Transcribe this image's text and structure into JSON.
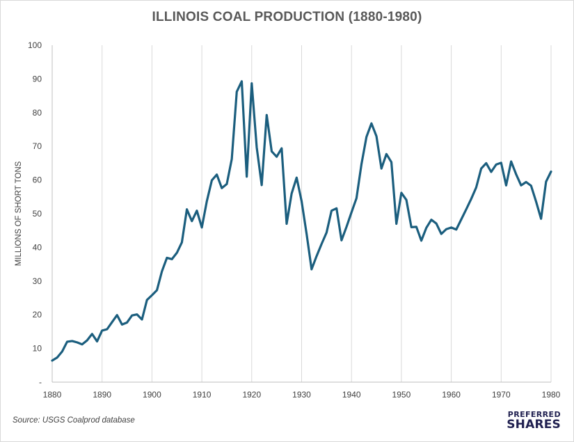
{
  "title": "ILLINOIS COAL PRODUCTION (1880-1980)",
  "source": "Source: USGS Coalprod database",
  "logo": {
    "line1": "PREFERRED",
    "line2": "SHARES"
  },
  "colors": {
    "line": "#1b5e7e",
    "grid": "#d9d9d9",
    "axis": "#bfbfbf",
    "text": "#404040"
  },
  "chart_data": {
    "type": "line",
    "title": "ILLINOIS COAL PRODUCTION (1880-1980)",
    "xlabel": "",
    "ylabel": "MILLIONS OF SHORT TONS",
    "xlim": [
      1880,
      1980
    ],
    "ylim": [
      0,
      100
    ],
    "grid": "vertical",
    "legend": "none",
    "x_ticks": [
      1880,
      1890,
      1900,
      1910,
      1920,
      1930,
      1940,
      1950,
      1960,
      1970,
      1980
    ],
    "y_ticks": [
      {
        "value": 0,
        "label": "-"
      },
      {
        "value": 10,
        "label": "10"
      },
      {
        "value": 20,
        "label": "20"
      },
      {
        "value": 30,
        "label": "30"
      },
      {
        "value": 40,
        "label": "40"
      },
      {
        "value": 50,
        "label": "50"
      },
      {
        "value": 60,
        "label": "60"
      },
      {
        "value": 70,
        "label": "70"
      },
      {
        "value": 80,
        "label": "80"
      },
      {
        "value": 90,
        "label": "90"
      },
      {
        "value": 100,
        "label": "100"
      }
    ],
    "series": [
      {
        "x": [
          1880,
          1881,
          1882,
          1883,
          1884,
          1885,
          1886,
          1887,
          1888,
          1889,
          1890,
          1891,
          1892,
          1893,
          1894,
          1895,
          1896,
          1897,
          1898,
          1899,
          1900,
          1901,
          1902,
          1903,
          1904,
          1905,
          1906,
          1907,
          1908,
          1909,
          1910,
          1911,
          1912,
          1913,
          1914,
          1915,
          1916,
          1917,
          1918,
          1919,
          1920,
          1921,
          1922,
          1923,
          1924,
          1925,
          1926,
          1927,
          1928,
          1929,
          1930,
          1931,
          1932,
          1933,
          1934,
          1935,
          1936,
          1937,
          1938,
          1939,
          1940,
          1941,
          1942,
          1943,
          1944,
          1945,
          1946,
          1947,
          1948,
          1949,
          1950,
          1951,
          1952,
          1953,
          1954,
          1955,
          1956,
          1957,
          1958,
          1959,
          1960,
          1961,
          1962,
          1963,
          1964,
          1965,
          1966,
          1967,
          1968,
          1969,
          1970,
          1971,
          1972,
          1973,
          1974,
          1975,
          1976,
          1977,
          1978,
          1979,
          1980
        ],
        "values": [
          6.4,
          7.3,
          9.1,
          12.0,
          12.2,
          11.8,
          11.2,
          12.4,
          14.3,
          12.1,
          15.3,
          15.7,
          17.8,
          19.9,
          17.1,
          17.7,
          19.8,
          20.1,
          18.6,
          24.4,
          25.8,
          27.3,
          32.9,
          36.9,
          36.5,
          38.4,
          41.5,
          51.3,
          47.8,
          50.9,
          45.9,
          53.7,
          59.9,
          61.6,
          57.6,
          58.8,
          66.2,
          86.2,
          89.3,
          61.0,
          88.7,
          69.7,
          58.5,
          79.3,
          68.5,
          66.9,
          69.4,
          47.0,
          56.0,
          60.7,
          53.7,
          44.0,
          33.5,
          37.4,
          41.0,
          44.4,
          50.9,
          51.6,
          42.1,
          46.1,
          50.4,
          54.6,
          64.7,
          72.8,
          76.8,
          73.0,
          63.4,
          67.7,
          65.3,
          47.0,
          56.2,
          54.1,
          46.0,
          46.1,
          42.0,
          45.8,
          48.2,
          47.1,
          44.0,
          45.4,
          45.9,
          45.3,
          48.3,
          51.3,
          54.4,
          57.8,
          63.4,
          65.0,
          62.4,
          64.6,
          65.1,
          58.4,
          65.5,
          61.7,
          58.4,
          59.4,
          58.3,
          53.6,
          48.5,
          59.5,
          62.5
        ]
      }
    ]
  }
}
